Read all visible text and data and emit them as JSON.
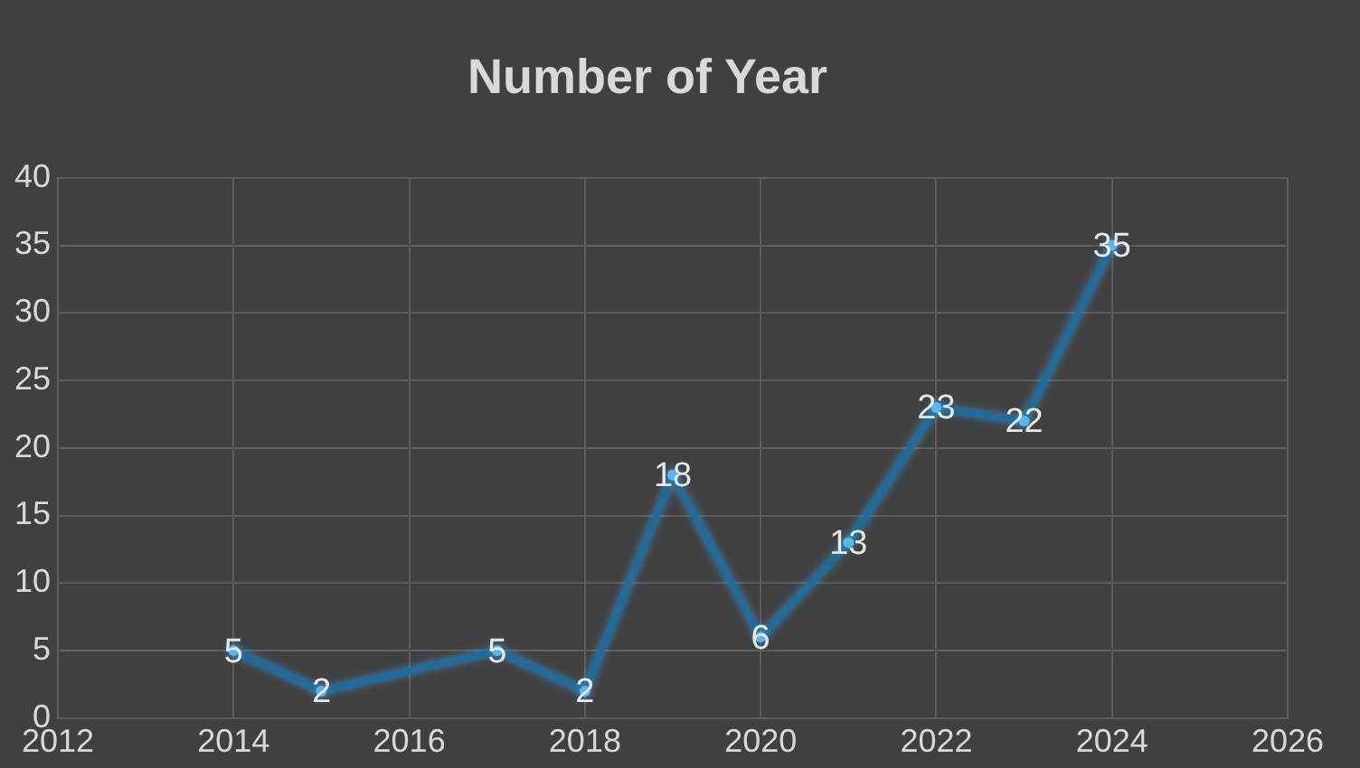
{
  "chart_data": {
    "type": "line",
    "title": "Number of Year",
    "x": [
      2014,
      2015,
      2017,
      2018,
      2019,
      2020,
      2021,
      2022,
      2023,
      2024
    ],
    "series": [
      {
        "color": "#1f6c9c",
        "values": [
          5,
          2,
          5,
          2,
          18,
          6,
          13,
          23,
          22,
          35
        ]
      }
    ],
    "xlim": [
      2012,
      2026
    ],
    "xticks": [
      2012,
      2014,
      2016,
      2018,
      2020,
      2022,
      2024,
      2026
    ],
    "ylim": [
      0,
      40
    ],
    "yticks": [
      0,
      5,
      10,
      15,
      20,
      25,
      30,
      35,
      40
    ],
    "grid": true,
    "legend": false,
    "marker": "circle",
    "line_style": "solid",
    "data_labels": true
  }
}
